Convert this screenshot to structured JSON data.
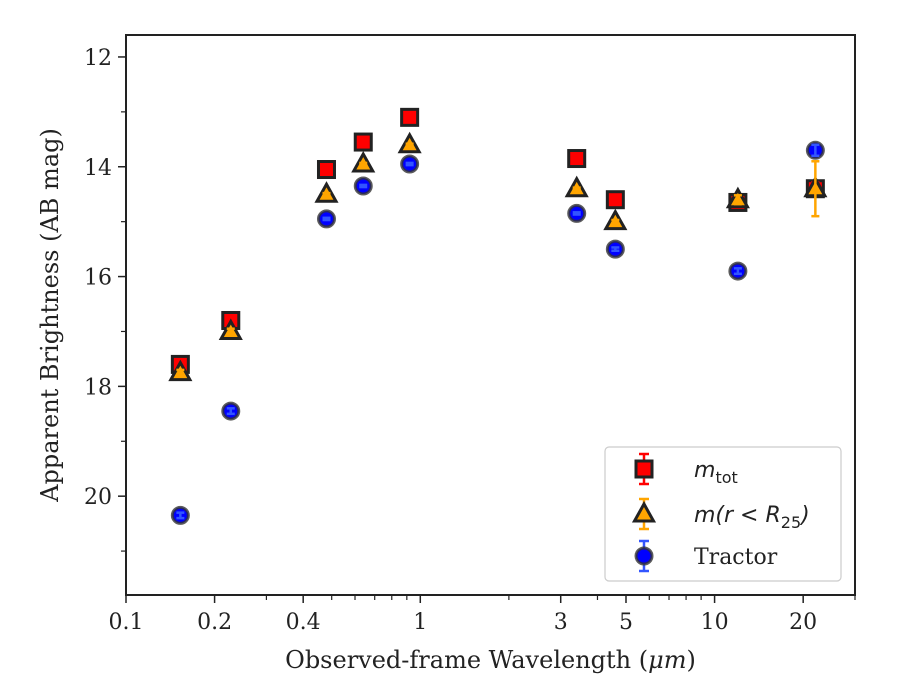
{
  "chart_data": {
    "type": "scatter",
    "xlabel_prefix": "Observed-frame Wavelength (",
    "xlabel_mu": "μm",
    "xlabel_suffix": ")",
    "ylabel": "Apparent Brightness (AB mag)",
    "x_scale": "log",
    "xlim": [
      0.1,
      30
    ],
    "ylim": [
      21.8,
      11.6
    ],
    "y_inverted": true,
    "x_ticks": [
      0.1,
      0.2,
      0.4,
      1,
      3,
      5,
      10,
      20
    ],
    "x_tick_labels": [
      "0.1",
      "0.2",
      "0.4",
      "1",
      "3",
      "5",
      "10",
      "20"
    ],
    "y_ticks": [
      12,
      14,
      16,
      18,
      20
    ],
    "y_tick_labels": [
      "12",
      "14",
      "16",
      "18",
      "20"
    ],
    "grid": false,
    "legend_position": "lower-right",
    "series": [
      {
        "key": "mtot",
        "legend_base": "m",
        "legend_sub": "tot",
        "marker": "square",
        "color": "#ff0000",
        "errorbar_color": "#ff0000",
        "x": [
          0.153,
          0.227,
          0.48,
          0.64,
          0.92,
          3.4,
          4.6,
          12.0,
          22.0
        ],
        "y": [
          17.6,
          16.8,
          14.05,
          13.55,
          13.1,
          13.85,
          14.6,
          14.65,
          14.4
        ],
        "yerr": [
          0.05,
          0.05,
          0.02,
          0.02,
          0.02,
          0.02,
          0.03,
          0.06,
          0.12
        ]
      },
      {
        "key": "mr25",
        "legend_base": "m(r < R",
        "legend_sub": "25",
        "legend_end": ")",
        "marker": "triangle",
        "color": "#ffa500",
        "errorbar_color": "#ffa500",
        "x": [
          0.153,
          0.227,
          0.48,
          0.64,
          0.92,
          3.4,
          4.6,
          12.0,
          22.0
        ],
        "y": [
          17.75,
          17.0,
          14.5,
          13.95,
          13.6,
          14.4,
          15.0,
          14.6,
          14.4
        ],
        "yerr": [
          0.05,
          0.05,
          0.02,
          0.02,
          0.02,
          0.02,
          0.03,
          0.08,
          0.5
        ]
      },
      {
        "key": "tractor",
        "legend_base": "Tractor",
        "marker": "circle",
        "color": "#0000ff",
        "errorbar_color": "#3355ff",
        "x": [
          0.153,
          0.227,
          0.48,
          0.64,
          0.92,
          3.4,
          4.6,
          12.0,
          22.0
        ],
        "y": [
          20.35,
          18.45,
          14.95,
          14.35,
          13.95,
          14.85,
          15.5,
          15.9,
          13.7
        ],
        "yerr": [
          0.05,
          0.05,
          0.02,
          0.02,
          0.02,
          0.02,
          0.03,
          0.05,
          0.1
        ]
      }
    ]
  }
}
